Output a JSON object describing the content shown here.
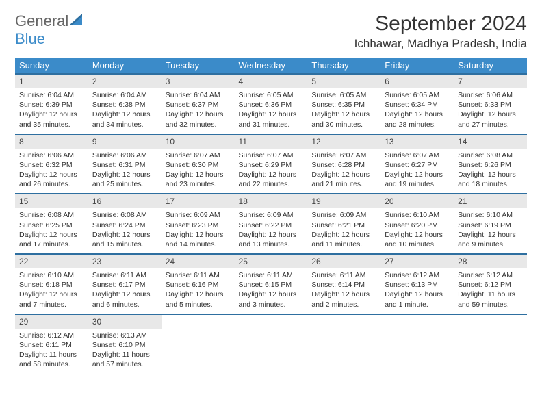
{
  "brand": {
    "line1": "General",
    "line2": "Blue",
    "icon": "sail-icon"
  },
  "title": "September 2024",
  "location": "Ichhawar, Madhya Pradesh, India",
  "colors": {
    "header_bg": "#3b8bc9",
    "row_divider": "#2e6fa0",
    "daynum_bg": "#e8e8e8",
    "page_bg": "#ffffff",
    "text": "#333333"
  },
  "weekdays": [
    "Sunday",
    "Monday",
    "Tuesday",
    "Wednesday",
    "Thursday",
    "Friday",
    "Saturday"
  ],
  "weeks": [
    [
      {
        "n": "1",
        "sr": "6:04 AM",
        "ss": "6:39 PM",
        "dl": "12 hours and 35 minutes."
      },
      {
        "n": "2",
        "sr": "6:04 AM",
        "ss": "6:38 PM",
        "dl": "12 hours and 34 minutes."
      },
      {
        "n": "3",
        "sr": "6:04 AM",
        "ss": "6:37 PM",
        "dl": "12 hours and 32 minutes."
      },
      {
        "n": "4",
        "sr": "6:05 AM",
        "ss": "6:36 PM",
        "dl": "12 hours and 31 minutes."
      },
      {
        "n": "5",
        "sr": "6:05 AM",
        "ss": "6:35 PM",
        "dl": "12 hours and 30 minutes."
      },
      {
        "n": "6",
        "sr": "6:05 AM",
        "ss": "6:34 PM",
        "dl": "12 hours and 28 minutes."
      },
      {
        "n": "7",
        "sr": "6:06 AM",
        "ss": "6:33 PM",
        "dl": "12 hours and 27 minutes."
      }
    ],
    [
      {
        "n": "8",
        "sr": "6:06 AM",
        "ss": "6:32 PM",
        "dl": "12 hours and 26 minutes."
      },
      {
        "n": "9",
        "sr": "6:06 AM",
        "ss": "6:31 PM",
        "dl": "12 hours and 25 minutes."
      },
      {
        "n": "10",
        "sr": "6:07 AM",
        "ss": "6:30 PM",
        "dl": "12 hours and 23 minutes."
      },
      {
        "n": "11",
        "sr": "6:07 AM",
        "ss": "6:29 PM",
        "dl": "12 hours and 22 minutes."
      },
      {
        "n": "12",
        "sr": "6:07 AM",
        "ss": "6:28 PM",
        "dl": "12 hours and 21 minutes."
      },
      {
        "n": "13",
        "sr": "6:07 AM",
        "ss": "6:27 PM",
        "dl": "12 hours and 19 minutes."
      },
      {
        "n": "14",
        "sr": "6:08 AM",
        "ss": "6:26 PM",
        "dl": "12 hours and 18 minutes."
      }
    ],
    [
      {
        "n": "15",
        "sr": "6:08 AM",
        "ss": "6:25 PM",
        "dl": "12 hours and 17 minutes."
      },
      {
        "n": "16",
        "sr": "6:08 AM",
        "ss": "6:24 PM",
        "dl": "12 hours and 15 minutes."
      },
      {
        "n": "17",
        "sr": "6:09 AM",
        "ss": "6:23 PM",
        "dl": "12 hours and 14 minutes."
      },
      {
        "n": "18",
        "sr": "6:09 AM",
        "ss": "6:22 PM",
        "dl": "12 hours and 13 minutes."
      },
      {
        "n": "19",
        "sr": "6:09 AM",
        "ss": "6:21 PM",
        "dl": "12 hours and 11 minutes."
      },
      {
        "n": "20",
        "sr": "6:10 AM",
        "ss": "6:20 PM",
        "dl": "12 hours and 10 minutes."
      },
      {
        "n": "21",
        "sr": "6:10 AM",
        "ss": "6:19 PM",
        "dl": "12 hours and 9 minutes."
      }
    ],
    [
      {
        "n": "22",
        "sr": "6:10 AM",
        "ss": "6:18 PM",
        "dl": "12 hours and 7 minutes."
      },
      {
        "n": "23",
        "sr": "6:11 AM",
        "ss": "6:17 PM",
        "dl": "12 hours and 6 minutes."
      },
      {
        "n": "24",
        "sr": "6:11 AM",
        "ss": "6:16 PM",
        "dl": "12 hours and 5 minutes."
      },
      {
        "n": "25",
        "sr": "6:11 AM",
        "ss": "6:15 PM",
        "dl": "12 hours and 3 minutes."
      },
      {
        "n": "26",
        "sr": "6:11 AM",
        "ss": "6:14 PM",
        "dl": "12 hours and 2 minutes."
      },
      {
        "n": "27",
        "sr": "6:12 AM",
        "ss": "6:13 PM",
        "dl": "12 hours and 1 minute."
      },
      {
        "n": "28",
        "sr": "6:12 AM",
        "ss": "6:12 PM",
        "dl": "11 hours and 59 minutes."
      }
    ],
    [
      {
        "n": "29",
        "sr": "6:12 AM",
        "ss": "6:11 PM",
        "dl": "11 hours and 58 minutes."
      },
      {
        "n": "30",
        "sr": "6:13 AM",
        "ss": "6:10 PM",
        "dl": "11 hours and 57 minutes."
      },
      null,
      null,
      null,
      null,
      null
    ]
  ],
  "labels": {
    "sunrise": "Sunrise:",
    "sunset": "Sunset:",
    "daylight": "Daylight:"
  }
}
